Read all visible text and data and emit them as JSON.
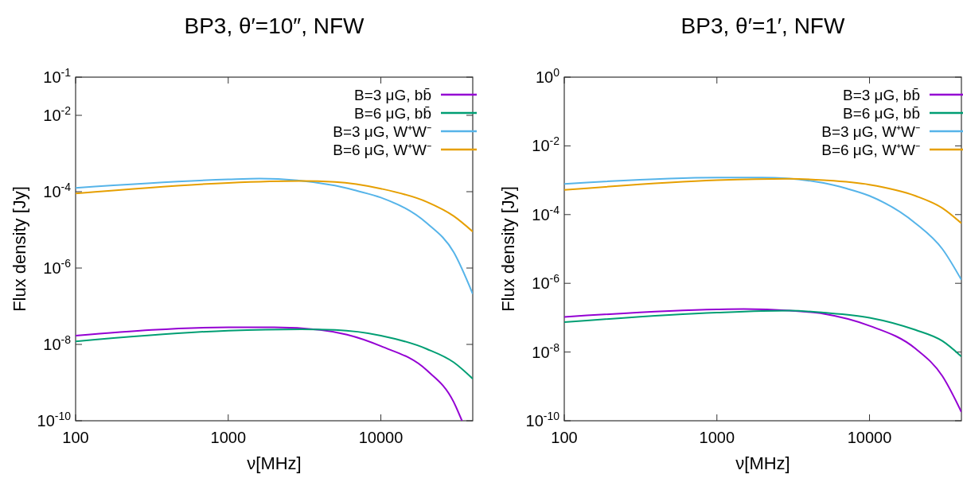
{
  "chart_data": [
    {
      "type": "line",
      "title": "BP3, θ′=10″, NFW",
      "xlabel": "ν[MHz]",
      "ylabel": "Flux density [Jy]",
      "log": "xy",
      "grid": false,
      "legend": "top right",
      "xlim": [
        100,
        40000
      ],
      "xticks": [
        100,
        1000,
        10000
      ],
      "ylim": [
        1e-10,
        0.1
      ],
      "yticks": [
        {
          "value": 0.1,
          "label": "10$^{-1}$"
        },
        {
          "value": 0.01,
          "label": "10$^{-2}$"
        },
        {
          "value": 0.0001,
          "label": "10$^{-4}$"
        },
        {
          "value": 1e-06,
          "label": "10$^{-6}$"
        },
        {
          "value": 1e-08,
          "label": "10$^{-8}$"
        },
        {
          "value": 1e-10,
          "label": "10$^{-10}$"
        }
      ],
      "series": [
        {
          "name": "B=3 μG,  bb̄",
          "color": "#9400d3",
          "x": [
            100,
            1000,
            2000,
            4000,
            6000,
            10000,
            20000,
            30000,
            34000
          ],
          "values": [
            1.7e-08,
            2.8e-08,
            2.8e-08,
            2.4e-08,
            1.8e-08,
            9e-09,
            2.1e-09,
            3.1e-10,
            1e-10
          ]
        },
        {
          "name": "B=6 μG,  bb̄",
          "color": "#009e73",
          "x": [
            100,
            1000,
            3000,
            5000,
            10000,
            20000,
            30000,
            40000
          ],
          "values": [
            1.2e-08,
            2.3e-08,
            2.5e-08,
            2.4e-08,
            1.7e-08,
            7.6e-09,
            3.4e-09,
            1.26e-09
          ]
        },
        {
          "name": "B=3 μG, W⁺W⁻",
          "color": "#56b4e9",
          "x": [
            100,
            1000,
            1600,
            5000,
            7000,
            10000,
            20000,
            30000,
            40000
          ],
          "values": [
            0.000126,
            0.00021,
            0.00022,
            0.000145,
            0.000105,
            7e-05,
            1.5e-05,
            2.6e-06,
            2.1e-07
          ]
        },
        {
          "name": "B=6 μG, W⁺W⁻",
          "color": "#e69f00",
          "x": [
            100,
            1000,
            3000,
            5000,
            10000,
            20000,
            30000,
            40000
          ],
          "values": [
            9e-05,
            0.00017,
            0.00019,
            0.00018,
            0.00012,
            5.4e-05,
            2.3e-05,
            9e-06
          ]
        }
      ]
    },
    {
      "type": "line",
      "title": "BP3, θ′=1′, NFW",
      "xlabel": "ν[MHz]",
      "ylabel": "Flux density [Jy]",
      "log": "xy",
      "grid": false,
      "legend": "top right",
      "xlim": [
        100,
        40000
      ],
      "xticks": [
        100,
        1000,
        10000
      ],
      "ylim": [
        1e-10,
        1
      ],
      "yticks": [
        {
          "value": 1,
          "label": "10$^{0}$"
        },
        {
          "value": 0.01,
          "label": "10$^{-2}$"
        },
        {
          "value": 0.0001,
          "label": "10$^{-4}$"
        },
        {
          "value": 1e-06,
          "label": "10$^{-6}$"
        },
        {
          "value": 1e-08,
          "label": "10$^{-8}$"
        },
        {
          "value": 1e-10,
          "label": "10$^{-10}$"
        }
      ],
      "series": [
        {
          "name": "B=3 μG,  bb̄",
          "color": "#9400d3",
          "x": [
            100,
            1000,
            1500,
            3000,
            5000,
            10000,
            20000,
            30000,
            40000
          ],
          "values": [
            1.05e-07,
            1.74e-07,
            1.78e-07,
            1.6e-07,
            1.3e-07,
            5.8e-08,
            1.26e-08,
            2e-09,
            1.8e-10
          ]
        },
        {
          "name": "B=6 μG,  bb̄",
          "color": "#009e73",
          "x": [
            100,
            1000,
            3000,
            5000,
            10000,
            20000,
            30000,
            40000
          ],
          "values": [
            7.4e-08,
            1.4e-07,
            1.6e-07,
            1.4e-07,
            1e-07,
            4.4e-08,
            2.1e-08,
            7.4e-09
          ]
        },
        {
          "name": "B=3 μG, W⁺W⁻",
          "color": "#56b4e9",
          "x": [
            100,
            1000,
            2000,
            5000,
            7000,
            10000,
            20000,
            30000,
            40000
          ],
          "values": [
            0.00078,
            0.0012,
            0.0012,
            0.00083,
            0.00058,
            0.00035,
            5.6e-05,
            1e-05,
            1.26e-06
          ]
        },
        {
          "name": "B=6 μG, W⁺W⁻",
          "color": "#e69f00",
          "x": [
            100,
            1000,
            3000,
            5000,
            10000,
            20000,
            30000,
            40000
          ],
          "values": [
            0.00052,
            0.001,
            0.0011,
            0.001,
            0.00074,
            0.00035,
            0.000155,
            5.6e-05
          ]
        }
      ]
    }
  ]
}
